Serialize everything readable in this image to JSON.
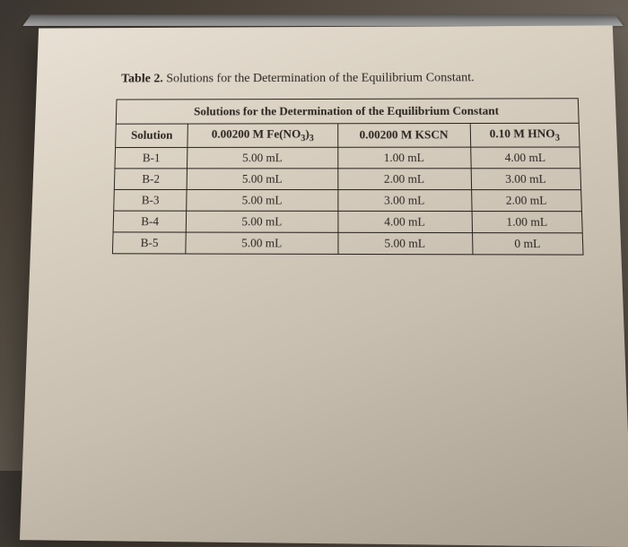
{
  "caption_label": "Table 2.",
  "caption_text": " Solutions for the Determination of the Equilibrium Constant.",
  "table": {
    "title": "Solutions for the Determination of the Equilibrium Constant",
    "columns": [
      "Solution",
      "0.00200 M Fe(NO₃)₃",
      "0.00200 M KSCN",
      "0.10 M HNO₃"
    ],
    "col_plain": {
      "c0": "Solution",
      "c1_pre": "0.00200 M Fe(NO",
      "c1_sub": "3",
      "c1_mid": ")",
      "c1_sub2": "3",
      "c2": "0.00200 M KSCN",
      "c3_pre": "0.10 M HNO",
      "c3_sub": "3"
    },
    "rows": [
      {
        "sol": "B-1",
        "fe": "5.00 mL",
        "kscn": "1.00 mL",
        "hno3": "4.00 mL"
      },
      {
        "sol": "B-2",
        "fe": "5.00 mL",
        "kscn": "2.00 mL",
        "hno3": "3.00 mL"
      },
      {
        "sol": "B-3",
        "fe": "5.00 mL",
        "kscn": "3.00 mL",
        "hno3": "2.00 mL"
      },
      {
        "sol": "B-4",
        "fe": "5.00 mL",
        "kscn": "4.00 mL",
        "hno3": "1.00 mL"
      },
      {
        "sol": "B-5",
        "fe": "5.00 mL",
        "kscn": "5.00 mL",
        "hno3": "0 mL"
      }
    ]
  }
}
